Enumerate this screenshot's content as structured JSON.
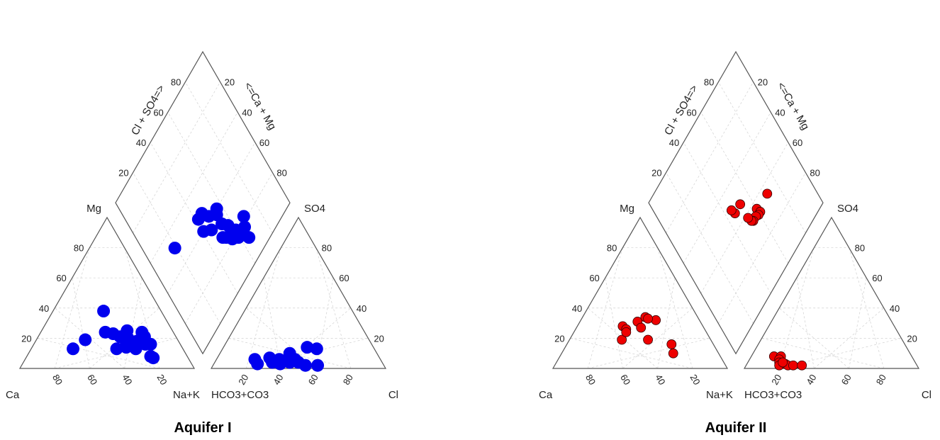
{
  "chart_data": [
    {
      "type": "scatter",
      "subtype": "piper",
      "caption": "Aquifer I",
      "color": "#0000ee",
      "marker_size": "large",
      "labels": {
        "cation_apex": "Mg",
        "cation_left": "Ca",
        "cation_right": "Na+K",
        "anion_apex": "SO4",
        "anion_left": "HCO3+CO3",
        "anion_right": "Cl",
        "diamond_left": "Cl + SO4=>",
        "diamond_right": "<=Ca + Mg"
      },
      "ticks": [
        20,
        40,
        60,
        80
      ],
      "cation_points": [
        {
          "mg": 38,
          "na_k": 29
        },
        {
          "mg": 13,
          "na_k": 24
        },
        {
          "mg": 19,
          "na_k": 28
        },
        {
          "mg": 24,
          "na_k": 37
        },
        {
          "mg": 23,
          "na_k": 42
        },
        {
          "mg": 21,
          "na_k": 47
        },
        {
          "mg": 25,
          "na_k": 49
        },
        {
          "mg": 20,
          "na_k": 52
        },
        {
          "mg": 13,
          "na_k": 49
        },
        {
          "mg": 16,
          "na_k": 53
        },
        {
          "mg": 18,
          "na_k": 58
        },
        {
          "mg": 24,
          "na_k": 58
        },
        {
          "mg": 21,
          "na_k": 61
        },
        {
          "mg": 13,
          "na_k": 60
        },
        {
          "mg": 16,
          "na_k": 64
        },
        {
          "mg": 16,
          "na_k": 67
        },
        {
          "mg": 8,
          "na_k": 71
        },
        {
          "mg": 7,
          "na_k": 73
        },
        {
          "mg": 14,
          "na_k": 54
        },
        {
          "mg": 17,
          "na_k": 56
        }
      ],
      "anion_points": [
        {
          "so4": 14,
          "cl": 48
        },
        {
          "so4": 6,
          "cl": 22
        },
        {
          "so4": 3,
          "cl": 25
        },
        {
          "so4": 7,
          "cl": 30
        },
        {
          "so4": 4,
          "cl": 33
        },
        {
          "so4": 6,
          "cl": 36
        },
        {
          "so4": 3,
          "cl": 38
        },
        {
          "so4": 7,
          "cl": 41
        },
        {
          "so4": 4,
          "cl": 43
        },
        {
          "so4": 10,
          "cl": 40
        },
        {
          "so4": 4,
          "cl": 48
        },
        {
          "so4": 2,
          "cl": 53
        },
        {
          "so4": 2,
          "cl": 60
        },
        {
          "so4": 13,
          "cl": 54
        },
        {
          "so4": 6,
          "cl": 45
        }
      ],
      "diamond_points": [
        {
          "ca_mg": 51,
          "cl_so4": 19
        },
        {
          "ca_mg": 47,
          "cl_so4": 42
        },
        {
          "ca_mg": 47,
          "cl_so4": 46
        },
        {
          "ca_mg": 42,
          "cl_so4": 49
        },
        {
          "ca_mg": 36,
          "cl_so4": 46
        },
        {
          "ca_mg": 40,
          "cl_so4": 41
        },
        {
          "ca_mg": 38,
          "cl_so4": 54
        },
        {
          "ca_mg": 25,
          "cl_so4": 52
        },
        {
          "ca_mg": 28,
          "cl_so4": 57
        },
        {
          "ca_mg": 32,
          "cl_so4": 54
        },
        {
          "ca_mg": 27,
          "cl_so4": 50
        },
        {
          "ca_mg": 23,
          "cl_so4": 55
        },
        {
          "ca_mg": 22,
          "cl_so4": 60
        },
        {
          "ca_mg": 21,
          "cl_so4": 55
        },
        {
          "ca_mg": 18,
          "cl_so4": 59
        },
        {
          "ca_mg": 17,
          "cl_so4": 62
        },
        {
          "ca_mg": 12,
          "cl_so4": 65
        },
        {
          "ca_mg": 18,
          "cl_so4": 66
        },
        {
          "ca_mg": 22,
          "cl_so4": 69
        },
        {
          "ca_mg": 40,
          "cl_so4": 56
        }
      ]
    },
    {
      "type": "scatter",
      "subtype": "piper",
      "caption": "Aquifer II",
      "color": "#ee0000",
      "marker_size": "small",
      "labels": {
        "cation_apex": "Mg",
        "cation_left": "Ca",
        "cation_right": "Na+K",
        "anion_apex": "SO4",
        "anion_left": "HCO3+CO3",
        "anion_right": "Cl",
        "diamond_left": "Cl + SO4=>",
        "diamond_right": "<=Ca + Mg"
      },
      "ticks": [
        20,
        40,
        60,
        80
      ],
      "cation_points": [
        {
          "mg": 28,
          "na_k": 26
        },
        {
          "mg": 26,
          "na_k": 29
        },
        {
          "mg": 31,
          "na_k": 33
        },
        {
          "mg": 34,
          "na_k": 36
        },
        {
          "mg": 27,
          "na_k": 37
        },
        {
          "mg": 32,
          "na_k": 43
        },
        {
          "mg": 19,
          "na_k": 30
        },
        {
          "mg": 19,
          "na_k": 45
        },
        {
          "mg": 16,
          "na_k": 60
        },
        {
          "mg": 10,
          "na_k": 64
        },
        {
          "mg": 24,
          "na_k": 30
        },
        {
          "mg": 33,
          "na_k": 38
        }
      ],
      "anion_points": [
        {
          "so4": 8,
          "cl": 13
        },
        {
          "so4": 8,
          "cl": 17
        },
        {
          "so4": 6,
          "cl": 17
        },
        {
          "so4": 4,
          "cl": 18
        },
        {
          "so4": 2,
          "cl": 19
        },
        {
          "so4": 3,
          "cl": 22
        },
        {
          "so4": 2,
          "cl": 24
        },
        {
          "so4": 2,
          "cl": 27
        },
        {
          "so4": 2,
          "cl": 32
        },
        {
          "so4": 4,
          "cl": 20
        }
      ],
      "diamond_points": [
        {
          "ca_mg": 36,
          "cl_so4": 60
        },
        {
          "ca_mg": 33,
          "cl_so4": 61
        },
        {
          "ca_mg": 33,
          "cl_so4": 59
        },
        {
          "ca_mg": 34,
          "cl_so4": 57
        },
        {
          "ca_mg": 34,
          "cl_so4": 54
        },
        {
          "ca_mg": 35,
          "cl_so4": 53
        },
        {
          "ca_mg": 38,
          "cl_so4": 52
        },
        {
          "ca_mg": 35,
          "cl_so4": 71
        },
        {
          "ca_mg": 47,
          "cl_so4": 52
        },
        {
          "ca_mg": 47,
          "cl_so4": 46
        },
        {
          "ca_mg": 50,
          "cl_so4": 45
        }
      ]
    }
  ]
}
